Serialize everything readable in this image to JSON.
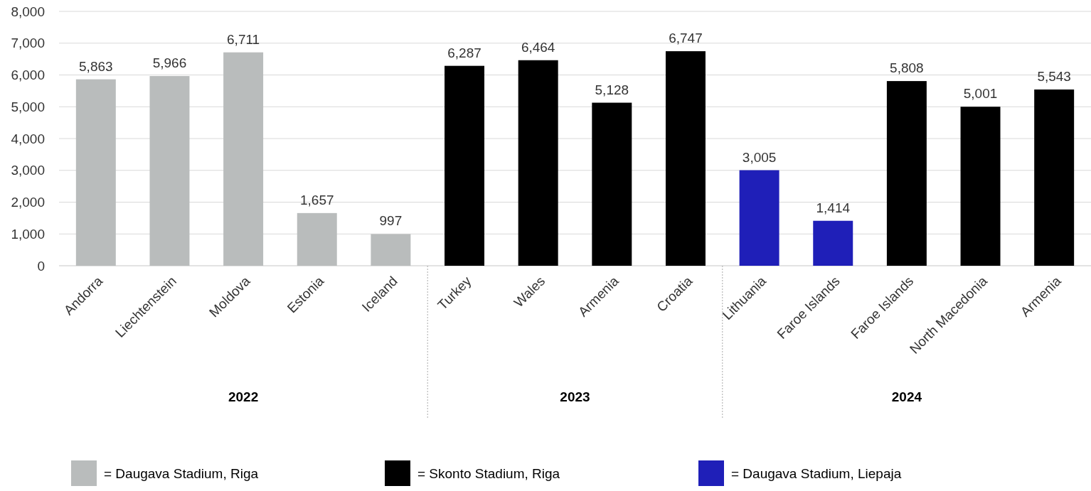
{
  "chart_data": {
    "type": "bar",
    "categories": [
      "Andorra",
      "Liechtenstein",
      "Moldova",
      "Estonia",
      "Iceland",
      "Turkey",
      "Wales",
      "Armenia",
      "Croatia",
      "Lithuania",
      "Faroe Islands",
      "Faroe Islands",
      "North Macedonia",
      "Armenia"
    ],
    "series": [
      {
        "name": "= Daugava Stadium, Riga",
        "color": "#b9bcbc",
        "values": [
          5863,
          5966,
          6711,
          1657,
          997,
          null,
          null,
          null,
          null,
          null,
          null,
          null,
          null,
          null
        ],
        "value_labels": [
          "5,863",
          "5,966",
          "6,711",
          "1,657",
          "997",
          null,
          null,
          null,
          null,
          null,
          null,
          null,
          null,
          null
        ]
      },
      {
        "name": "= Skonto Stadium, Riga",
        "color": "#000000",
        "values": [
          null,
          null,
          null,
          null,
          null,
          6287,
          6464,
          5128,
          6747,
          null,
          null,
          5808,
          5001,
          5543
        ],
        "value_labels": [
          null,
          null,
          null,
          null,
          null,
          "6,287",
          "6,464",
          "5,128",
          "6,747",
          null,
          null,
          "5,808",
          "5,001",
          "5,543"
        ]
      },
      {
        "name": "= Daugava Stadium, Liepaja",
        "color": "#1f1fb8",
        "values": [
          null,
          null,
          null,
          null,
          null,
          null,
          null,
          null,
          null,
          3005,
          1414,
          null,
          null,
          null
        ],
        "value_labels": [
          null,
          null,
          null,
          null,
          null,
          null,
          null,
          null,
          null,
          "3,005",
          "1,414",
          null,
          null,
          null
        ]
      }
    ],
    "ylim": [
      0,
      8000
    ],
    "yticks": [
      {
        "value": 0,
        "label": "0"
      },
      {
        "value": 1000,
        "label": "1,000"
      },
      {
        "value": 2000,
        "label": "2,000"
      },
      {
        "value": 3000,
        "label": "3,000"
      },
      {
        "value": 4000,
        "label": "4,000"
      },
      {
        "value": 5000,
        "label": "5,000"
      },
      {
        "value": 6000,
        "label": "6,000"
      },
      {
        "value": 7000,
        "label": "7,000"
      },
      {
        "value": 8000,
        "label": "8,000"
      }
    ],
    "annotations": [
      "2022",
      "2023",
      "2024"
    ],
    "grid": "y",
    "legend": "bottom"
  }
}
